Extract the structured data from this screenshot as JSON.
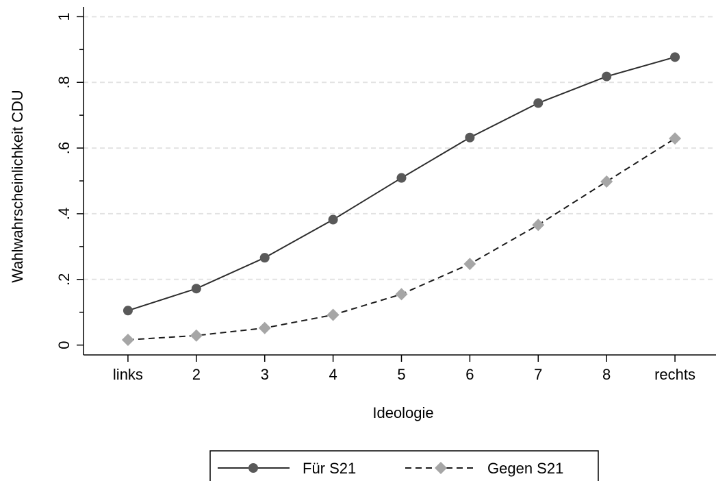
{
  "chart_data": {
    "type": "line",
    "title": "",
    "xlabel": "Ideologie",
    "ylabel": "Wahlwahrscheinlichkeit CDU",
    "x": [
      1,
      2,
      3,
      4,
      5,
      6,
      7,
      8,
      9
    ],
    "categories": [
      "links",
      "2",
      "3",
      "4",
      "5",
      "6",
      "7",
      "8",
      "rechts"
    ],
    "xlim": [
      0.35,
      9.6
    ],
    "ylim": [
      -0.03,
      1.03
    ],
    "yticks": [
      0,
      0.2,
      0.4,
      0.6,
      0.8,
      1
    ],
    "ytick_labels": [
      "0",
      ".2",
      ".4",
      ".6",
      ".8",
      "1"
    ],
    "grid": "horizontal dashed",
    "legend_position": "bottom",
    "series": [
      {
        "name": "Für S21",
        "values": [
          0.105,
          0.172,
          0.266,
          0.382,
          0.509,
          0.632,
          0.737,
          0.818,
          0.877
        ],
        "color": "#2d2d2d",
        "marker_color": "#595959",
        "line_style": "solid",
        "marker": "circle"
      },
      {
        "name": "Gegen S21",
        "values": [
          0.016,
          0.029,
          0.052,
          0.092,
          0.155,
          0.247,
          0.366,
          0.498,
          0.629
        ],
        "color": "#1a1a1a",
        "marker_color": "#a6a6a6",
        "line_style": "dashed",
        "marker": "diamond"
      }
    ]
  }
}
